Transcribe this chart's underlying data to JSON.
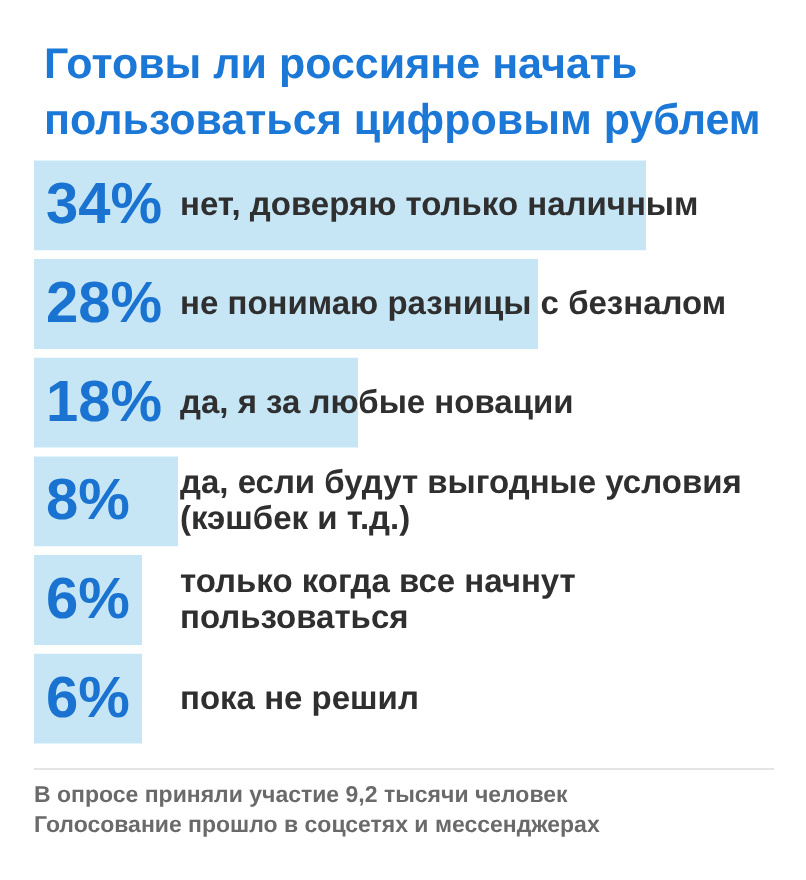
{
  "chart_data": {
    "type": "bar",
    "orientation": "horizontal",
    "title": "Готовы ли россияне начать пользоваться цифровым рублем",
    "categories": [
      "нет, доверяю только наличным",
      "не понимаю разницы с безналом",
      "да, я за любые новации",
      "да, если будут выгодные условия (кэшбек и т.д.)",
      "только когда все начнут пользоваться",
      "пока не решил"
    ],
    "values": [
      34,
      28,
      18,
      8,
      6,
      6
    ],
    "value_labels": [
      "34%",
      "28%",
      "18%",
      "8%",
      "6%",
      "6%"
    ],
    "color": "#c6e6f5",
    "tick_labels": "y",
    "annotations": [
      "В опросе приняли участие 9,2 тысячи человек",
      "Голосование прошло в соцсетях и мессенджерах"
    ]
  }
}
